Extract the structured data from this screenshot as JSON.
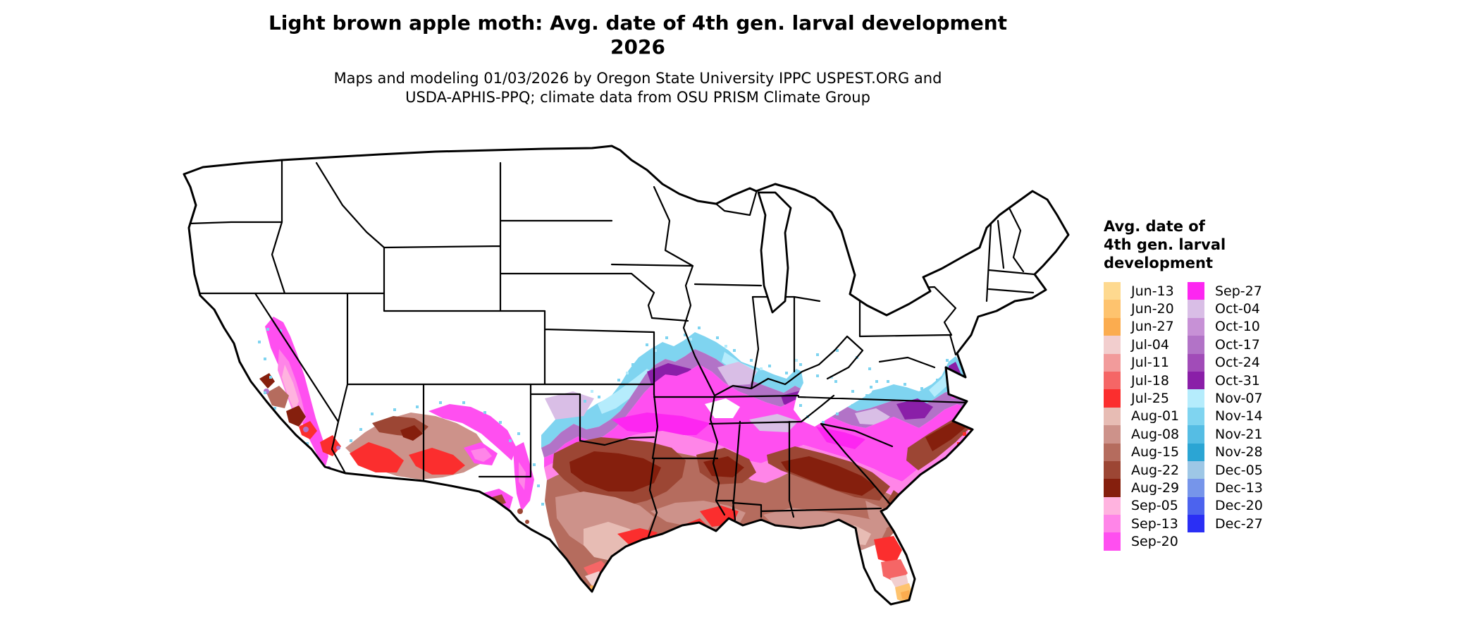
{
  "title": {
    "line1": "Light brown apple moth: Avg. date of 4th gen. larval development",
    "line2": "2026"
  },
  "subtitle": {
    "line1": "Maps and modeling 01/03/2026 by Oregon State University IPPC USPEST.ORG and",
    "line2": "USDA-APHIS-PPQ; climate data from OSU PRISM Climate Group"
  },
  "legend": {
    "title_lines": [
      "Avg. date of",
      "4th gen. larval",
      "development"
    ],
    "columns": [
      [
        {
          "label": "Jun-13",
          "color": "#FED98F"
        },
        {
          "label": "Jun-20",
          "color": "#FEC36E"
        },
        {
          "label": "Jun-27",
          "color": "#FBAC4F"
        },
        {
          "label": "Jul-04",
          "color": "#F2CECE"
        },
        {
          "label": "Jul-11",
          "color": "#F29B9B"
        },
        {
          "label": "Jul-18",
          "color": "#F56666"
        },
        {
          "label": "Jul-25",
          "color": "#FB2E2E"
        },
        {
          "label": "Aug-01",
          "color": "#E7BCB4"
        },
        {
          "label": "Aug-08",
          "color": "#CD928A"
        },
        {
          "label": "Aug-15",
          "color": "#B56C5E"
        },
        {
          "label": "Aug-22",
          "color": "#9C4634"
        },
        {
          "label": "Aug-29",
          "color": "#851F0D"
        },
        {
          "label": "Sep-05",
          "color": "#FFB3DF"
        },
        {
          "label": "Sep-13",
          "color": "#FF85E8"
        },
        {
          "label": "Sep-20",
          "color": "#FF4FF0"
        }
      ],
      [
        {
          "label": "Sep-27",
          "color": "#FD26F1"
        },
        {
          "label": "Oct-04",
          "color": "#D9BEE6"
        },
        {
          "label": "Oct-10",
          "color": "#C791D6"
        },
        {
          "label": "Oct-17",
          "color": "#B273C7"
        },
        {
          "label": "Oct-24",
          "color": "#A14CB8"
        },
        {
          "label": "Oct-31",
          "color": "#8A1FA8"
        },
        {
          "label": "Nov-07",
          "color": "#B5ECFC"
        },
        {
          "label": "Nov-14",
          "color": "#7FD4F0"
        },
        {
          "label": "Nov-21",
          "color": "#55BDE4"
        },
        {
          "label": "Nov-28",
          "color": "#2BA5D4"
        },
        {
          "label": "Dec-05",
          "color": "#9EC7E6"
        },
        {
          "label": "Dec-13",
          "color": "#7695EA"
        },
        {
          "label": "Dec-20",
          "color": "#4C63EE"
        },
        {
          "label": "Dec-27",
          "color": "#2A2FF5"
        }
      ]
    ]
  },
  "map": {
    "outline_color": "#000000",
    "no_data_color": "#ffffff"
  }
}
